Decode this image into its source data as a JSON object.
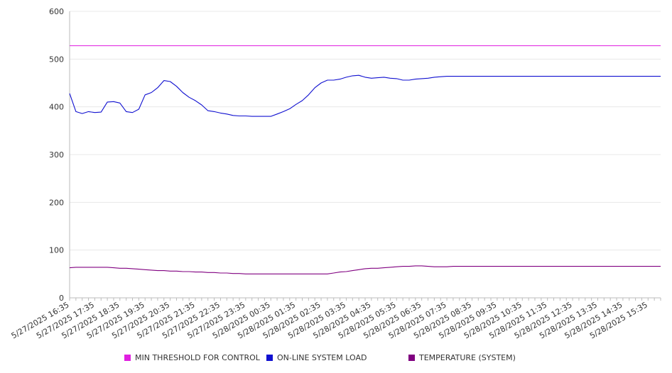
{
  "colors": {
    "threshold": "#e020e0",
    "load": "#1010d0",
    "temperature": "#800080",
    "grid": "#e8e8e8",
    "axis": "#bbbbbb"
  },
  "legend": {
    "threshold_label": "MIN THRESHOLD FOR CONTROL",
    "load_label": "ON-LINE SYSTEM LOAD",
    "temperature_label": "TEMPERATURE (SYSTEM)"
  },
  "chart_data": {
    "type": "line",
    "title": "",
    "xlabel": "",
    "ylabel": "",
    "ylim": [
      0,
      600
    ],
    "yticks": [
      0,
      100,
      200,
      300,
      400,
      500,
      600
    ],
    "x_tick_labels": [
      "5/27/2025 16:35",
      "5/27/2025 17:35",
      "5/27/2025 18:35",
      "5/27/2025 19:35",
      "5/27/2025 20:35",
      "5/27/2025 21:35",
      "5/27/2025 22:35",
      "5/27/2025 23:35",
      "5/28/2025 00:35",
      "5/28/2025 01:35",
      "5/28/2025 02:35",
      "5/28/2025 03:35",
      "5/28/2025 04:35",
      "5/28/2025 05:35",
      "5/28/2025 06:35",
      "5/28/2025 07:35",
      "5/28/2025 08:35",
      "5/28/2025 09:35",
      "5/28/2025 10:35",
      "5/28/2025 11:35",
      "5/28/2025 12:35",
      "5/28/2025 13:35",
      "5/28/2025 14:35",
      "5/28/2025 15:35"
    ],
    "x": [
      "5/27/2025 16:35",
      "5/27/2025 16:50",
      "5/27/2025 17:05",
      "5/27/2025 17:20",
      "5/27/2025 17:35",
      "5/27/2025 17:50",
      "5/27/2025 18:05",
      "5/27/2025 18:20",
      "5/27/2025 18:35",
      "5/27/2025 18:50",
      "5/27/2025 19:05",
      "5/27/2025 19:20",
      "5/27/2025 19:35",
      "5/27/2025 19:50",
      "5/27/2025 20:05",
      "5/27/2025 20:20",
      "5/27/2025 20:35",
      "5/27/2025 20:50",
      "5/27/2025 21:05",
      "5/27/2025 21:20",
      "5/27/2025 21:35",
      "5/27/2025 21:50",
      "5/27/2025 22:05",
      "5/27/2025 22:20",
      "5/27/2025 22:35",
      "5/27/2025 22:50",
      "5/27/2025 23:05",
      "5/27/2025 23:20",
      "5/27/2025 23:35",
      "5/27/2025 23:50",
      "5/28/2025 00:05",
      "5/28/2025 00:20",
      "5/28/2025 00:35",
      "5/28/2025 00:50",
      "5/28/2025 01:05",
      "5/28/2025 01:20",
      "5/28/2025 01:35",
      "5/28/2025 01:50",
      "5/28/2025 02:05",
      "5/28/2025 02:20",
      "5/28/2025 02:35",
      "5/28/2025 02:50",
      "5/28/2025 03:05",
      "5/28/2025 03:20",
      "5/28/2025 03:35",
      "5/28/2025 03:50",
      "5/28/2025 04:05",
      "5/28/2025 04:20",
      "5/28/2025 04:35",
      "5/28/2025 04:50",
      "5/28/2025 05:05",
      "5/28/2025 05:20",
      "5/28/2025 05:35",
      "5/28/2025 05:50",
      "5/28/2025 06:05",
      "5/28/2025 06:20",
      "5/28/2025 06:35",
      "5/28/2025 06:50",
      "5/28/2025 07:05",
      "5/28/2025 07:20",
      "5/28/2025 07:35",
      "5/28/2025 07:50",
      "5/28/2025 08:05",
      "5/28/2025 08:20",
      "5/28/2025 08:35",
      "5/28/2025 08:50",
      "5/28/2025 09:05",
      "5/28/2025 09:20",
      "5/28/2025 09:35",
      "5/28/2025 09:50",
      "5/28/2025 10:05",
      "5/28/2025 10:20",
      "5/28/2025 10:35",
      "5/28/2025 10:50",
      "5/28/2025 11:05",
      "5/28/2025 11:20",
      "5/28/2025 11:35",
      "5/28/2025 11:50",
      "5/28/2025 12:05",
      "5/28/2025 12:20",
      "5/28/2025 12:35",
      "5/28/2025 12:50",
      "5/28/2025 13:05",
      "5/28/2025 13:20",
      "5/28/2025 13:35",
      "5/28/2025 13:50",
      "5/28/2025 14:05",
      "5/28/2025 14:20",
      "5/28/2025 14:35",
      "5/28/2025 14:50",
      "5/28/2025 15:05",
      "5/28/2025 15:20",
      "5/28/2025 15:35",
      "5/28/2025 15:50",
      "5/28/2025 16:05"
    ],
    "series": [
      {
        "name": "MIN THRESHOLD FOR CONTROL",
        "values": [
          528,
          528,
          528,
          528,
          528,
          528,
          528,
          528,
          528,
          528,
          528,
          528,
          528,
          528,
          528,
          528,
          528,
          528,
          528,
          528,
          528,
          528,
          528,
          528,
          528,
          528,
          528,
          528,
          528,
          528,
          528,
          528,
          528,
          528,
          528,
          528,
          528,
          528,
          528,
          528,
          528,
          528,
          528,
          528,
          528,
          528,
          528,
          528,
          528,
          528,
          528,
          528,
          528,
          528,
          528,
          528,
          528,
          528,
          528,
          528,
          528,
          528,
          528,
          528,
          528,
          528,
          528,
          528,
          528,
          528,
          528,
          528,
          528,
          528,
          528,
          528,
          528,
          528,
          528,
          528,
          528,
          528,
          528,
          528,
          528,
          528,
          528,
          528,
          528,
          528,
          528,
          528,
          528,
          528,
          528
        ]
      },
      {
        "name": "ON-LINE SYSTEM LOAD",
        "values": [
          428,
          390,
          386,
          390,
          388,
          389,
          410,
          411,
          408,
          390,
          388,
          395,
          425,
          430,
          440,
          455,
          453,
          443,
          430,
          420,
          413,
          404,
          392,
          390,
          387,
          385,
          382,
          381,
          381,
          380,
          380,
          380,
          380,
          385,
          390,
          396,
          405,
          413,
          425,
          440,
          450,
          456,
          456,
          458,
          462,
          465,
          466,
          462,
          460,
          461,
          462,
          460,
          459,
          456,
          456,
          458,
          459,
          460,
          462,
          463,
          464,
          464,
          464,
          464,
          464,
          464,
          464,
          464,
          464,
          464,
          464,
          464,
          464,
          464,
          464,
          464,
          464,
          464,
          464,
          464,
          464,
          464,
          464,
          464,
          464,
          464,
          464,
          464,
          464,
          464,
          464,
          464,
          464,
          464,
          464
        ]
      },
      {
        "name": "TEMPERATURE (SYSTEM)",
        "values": [
          63,
          64,
          64,
          64,
          64,
          64,
          64,
          63,
          62,
          62,
          61,
          60,
          59,
          58,
          57,
          57,
          56,
          56,
          55,
          55,
          54,
          54,
          53,
          53,
          52,
          52,
          51,
          51,
          50,
          50,
          50,
          50,
          50,
          50,
          50,
          50,
          50,
          50,
          50,
          50,
          50,
          50,
          52,
          54,
          55,
          57,
          59,
          61,
          62,
          62,
          63,
          64,
          65,
          66,
          66,
          67,
          67,
          66,
          65,
          65,
          65,
          66,
          66,
          66,
          66,
          66,
          66,
          66,
          66,
          66,
          66,
          66,
          66,
          66,
          66,
          66,
          66,
          66,
          66,
          66,
          66,
          66,
          66,
          66,
          66,
          66,
          66,
          66,
          66,
          66,
          66,
          66,
          66,
          66,
          66
        ]
      }
    ]
  }
}
